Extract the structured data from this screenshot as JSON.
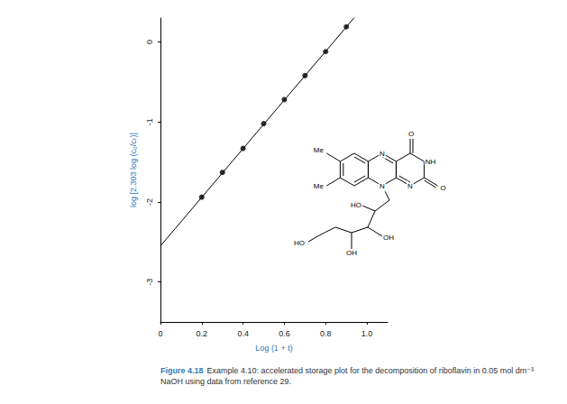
{
  "chart_data": {
    "type": "scatter",
    "x_label": "Log (1 + t)",
    "y_label": "log [2.303 log (c₀/cₜ)]",
    "x": [
      0.2,
      0.3,
      0.4,
      0.5,
      0.6,
      0.7,
      0.8,
      0.9
    ],
    "values": [
      -1.94,
      -1.63,
      -1.33,
      -1.02,
      -0.72,
      -0.42,
      -0.12,
      0.19
    ],
    "color": "#000000",
    "marker": "circle",
    "fit_line": {
      "x": [
        0,
        0.95
      ],
      "values": [
        -2.55,
        0.34
      ],
      "color": "#000000",
      "line_style": "solid"
    },
    "xlim": [
      0,
      1.1
    ],
    "xticks": [
      0,
      0.2,
      0.4,
      0.6,
      0.8,
      {
        "value": 1,
        "label": "1.0"
      }
    ],
    "ylim": [
      -3.5,
      0.3
    ],
    "yticks": [
      -3,
      -2,
      -1,
      0
    ],
    "grid": false,
    "caption": {
      "label": "Figure 4.18",
      "text": "Example 4.10: accelerated storage plot for the decomposition of riboflavin in 0.05 mol dm⁻³ NaOH using data from reference 29."
    },
    "inset": {
      "atoms": [
        "Me",
        "Me",
        "N",
        "N",
        "NH",
        "N",
        "O",
        "O",
        "HO",
        "OH",
        "OH",
        "HO"
      ]
    }
  }
}
